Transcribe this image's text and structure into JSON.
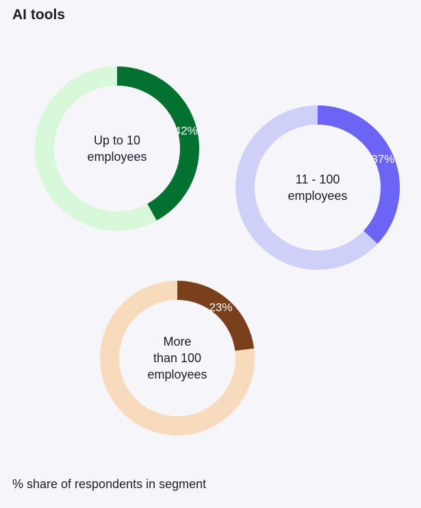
{
  "title": "AI tools",
  "footnote": "% share of respondents in segment",
  "chart_data": {
    "type": "donut",
    "title": "AI tools",
    "unit": "%",
    "series": [
      {
        "name": "Up to 10 employees",
        "label_lines": [
          "Up to 10",
          "employees"
        ],
        "value": 42,
        "value_label": "42%",
        "color": "#037231",
        "track_color": "#d8f8da"
      },
      {
        "name": "11 - 100 employees",
        "label_lines": [
          "11 - 100",
          "employees"
        ],
        "value": 37,
        "value_label": "37%",
        "color": "#6c64f4",
        "track_color": "#cfd0f8"
      },
      {
        "name": "More than 100 employees",
        "label_lines": [
          "More",
          "than 100",
          "employees"
        ],
        "value": 23,
        "value_label": "23%",
        "color": "#7a401b",
        "track_color": "#f8dbbc"
      }
    ]
  }
}
